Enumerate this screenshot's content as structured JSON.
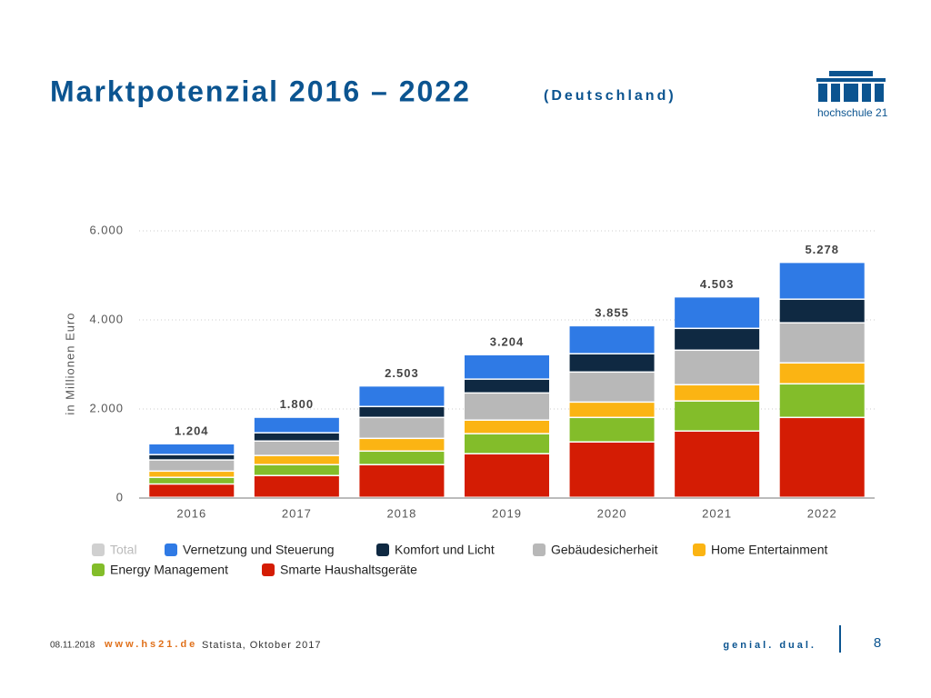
{
  "slide": {
    "title": "Marktpotenzial 2016 – 2022",
    "subtitle": "(Deutschland)",
    "logo_text": "hochschule 21",
    "date": "08.11.2018",
    "website": "www.hs21.de",
    "source": "Statista, Oktober 2017",
    "slogan": "genial. dual.",
    "page": "8"
  },
  "chart_data": {
    "type": "stacked_bar",
    "ylabel": "in Millionen Euro",
    "categories": [
      "2016",
      "2017",
      "2018",
      "2019",
      "2020",
      "2021",
      "2022"
    ],
    "ylim": [
      0,
      6000
    ],
    "yticks": [
      0,
      {
        "value": 2000,
        "label": "2.000"
      },
      {
        "value": 4000,
        "label": "4.000"
      },
      {
        "value": 6000,
        "label": "6.000"
      }
    ],
    "grid": true,
    "series": [
      {
        "name": "Total",
        "color": "#d0d0d0",
        "hidden": true,
        "values": [
          1204,
          1800,
          2503,
          3204,
          3855,
          4503,
          5278
        ],
        "value_labels": [
          "1.204",
          "1.800",
          "2.503",
          "3.204",
          "3.855",
          "4.503",
          "5.278"
        ]
      },
      {
        "name": "Vernetzung und Steuerung",
        "color": "#2f7ae5",
        "values": [
          244,
          350,
          463,
          549,
          630,
          708,
          828
        ]
      },
      {
        "name": "Komfort und Licht",
        "color": "#0f2942",
        "values": [
          120,
          185,
          245,
          310,
          410,
          490,
          530
        ]
      },
      {
        "name": "Gebäudesicherheit",
        "color": "#b8b8b8",
        "values": [
          250,
          325,
          470,
          610,
          675,
          775,
          900
        ]
      },
      {
        "name": "Home Entertainment",
        "color": "#fbb413",
        "values": [
          140,
          205,
          285,
          305,
          345,
          365,
          470
        ]
      },
      {
        "name": "Energy Management",
        "color": "#83bd2a",
        "values": [
          150,
          245,
          305,
          450,
          550,
          675,
          755
        ]
      },
      {
        "name": "Smarte Haushaltsgeräte",
        "color": "#d41c04",
        "values": [
          300,
          490,
          735,
          980,
          1245,
          1490,
          1795
        ]
      }
    ]
  }
}
